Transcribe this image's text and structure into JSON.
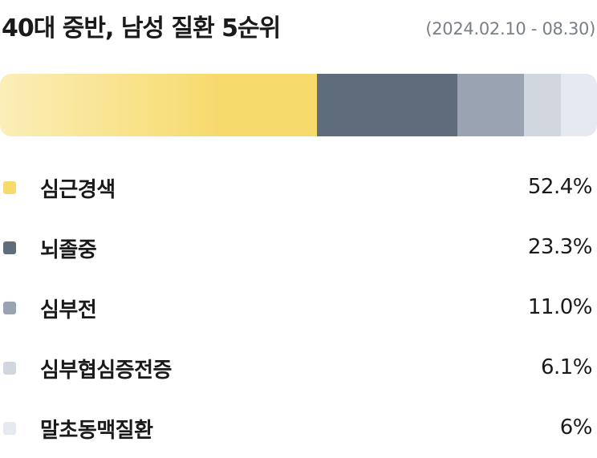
{
  "header": {
    "title": "40대 중반, 남성 질환 5순위",
    "date_range": "(2024.02.10 - 08.30)"
  },
  "chart_data": {
    "type": "bar",
    "orientation": "horizontal-stacked",
    "title": "40대 중반, 남성 질환 5순위",
    "subtitle": "(2024.02.10 - 08.30)",
    "categories": [
      "심근경색",
      "뇌졸중",
      "심부전",
      "심부협심증전증",
      "말초동맥질환"
    ],
    "values": [
      52.4,
      23.3,
      11.0,
      6.1,
      6
    ],
    "value_labels": [
      "52.4%",
      "23.3%",
      "11.0%",
      "6.1%",
      "6%"
    ],
    "unit": "%",
    "colors": [
      "#f7da6c",
      "#5f6c7b",
      "#9aa3b2",
      "#d2d6de",
      "#e6e9f0"
    ],
    "first_segment_gradient_start": "#fbeeb8",
    "legend_placement": "bottom",
    "grid": false
  }
}
